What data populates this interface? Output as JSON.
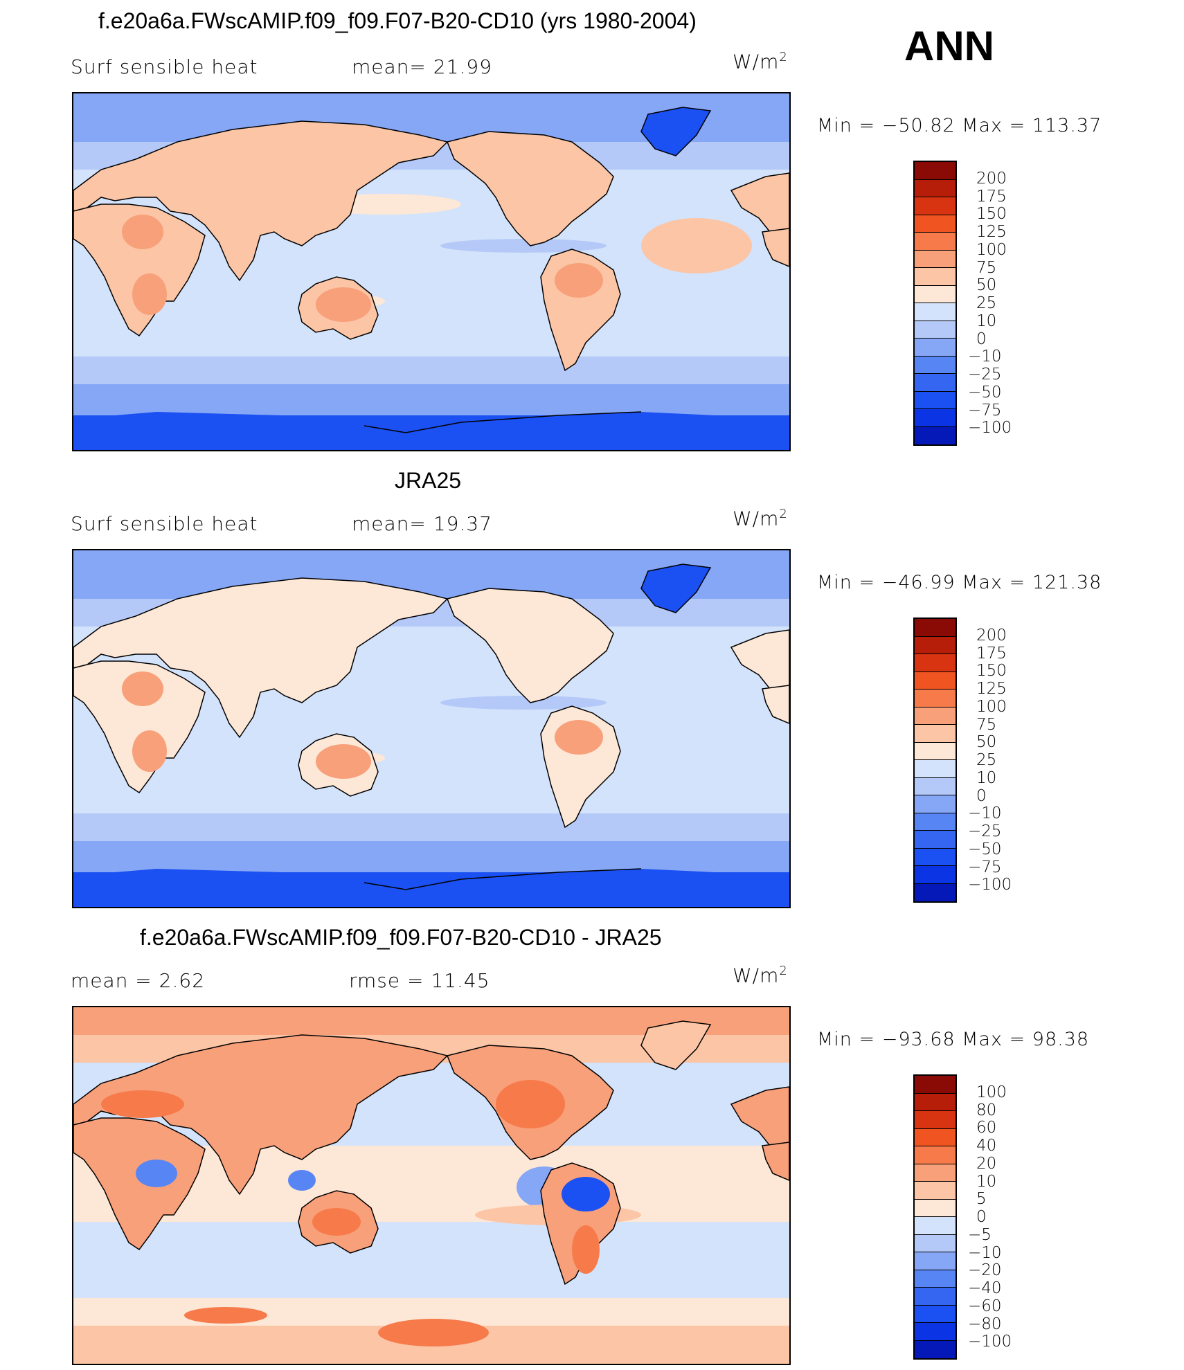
{
  "season_label": "ANN",
  "units_base": "W/m",
  "units_exp": "2",
  "colors": {
    "level_colors": [
      "#020c6b",
      "#0519b8",
      "#0a34e4",
      "#1b50f2",
      "#3466f2",
      "#5785f4",
      "#86a7f6",
      "#b4c9f8",
      "#d3e3fb",
      "#fde7d6",
      "#fbc5a6",
      "#f8a07a",
      "#f67a4a",
      "#f05420",
      "#d93412",
      "#b61e0a",
      "#8a0b05"
    ],
    "ocean": "#d2e3fb",
    "coast": "#000000"
  },
  "panels": [
    {
      "title": "f.e20a6a.FWscAMIP.f09_f09.F07-B20-CD10 (yrs 1980-2004)",
      "left_label": "Surf  sensible  heat",
      "mid_label": "mean=   21.99",
      "min_max": "Min  =  −50.82  Max  =  113.37",
      "levels": [
        "200",
        "175",
        "150",
        "125",
        "100",
        "75",
        "50",
        "25",
        "10",
        "0",
        "−10",
        "−25",
        "−50",
        "−75",
        "−100"
      ]
    },
    {
      "title": "JRA25",
      "left_label": "Surf  sensible  heat",
      "mid_label": "mean=   19.37",
      "min_max": "Min  =  −46.99  Max  =  121.38",
      "levels": [
        "200",
        "175",
        "150",
        "125",
        "100",
        "75",
        "50",
        "25",
        "10",
        "0",
        "−10",
        "−25",
        "−50",
        "−75",
        "−100"
      ]
    },
    {
      "title": "f.e20a6a.FWscAMIP.f09_f09.F07-B20-CD10 - JRA25",
      "left_label": "mean  =      2.62",
      "mid_label": "rmse  =    11.45",
      "min_max": "Min  =  −93.68  Max  =   98.38",
      "levels": [
        "100",
        "80",
        "60",
        "40",
        "20",
        "10",
        "5",
        "0",
        "−5",
        "−10",
        "−20",
        "−40",
        "−60",
        "−80",
        "−100"
      ]
    }
  ]
}
